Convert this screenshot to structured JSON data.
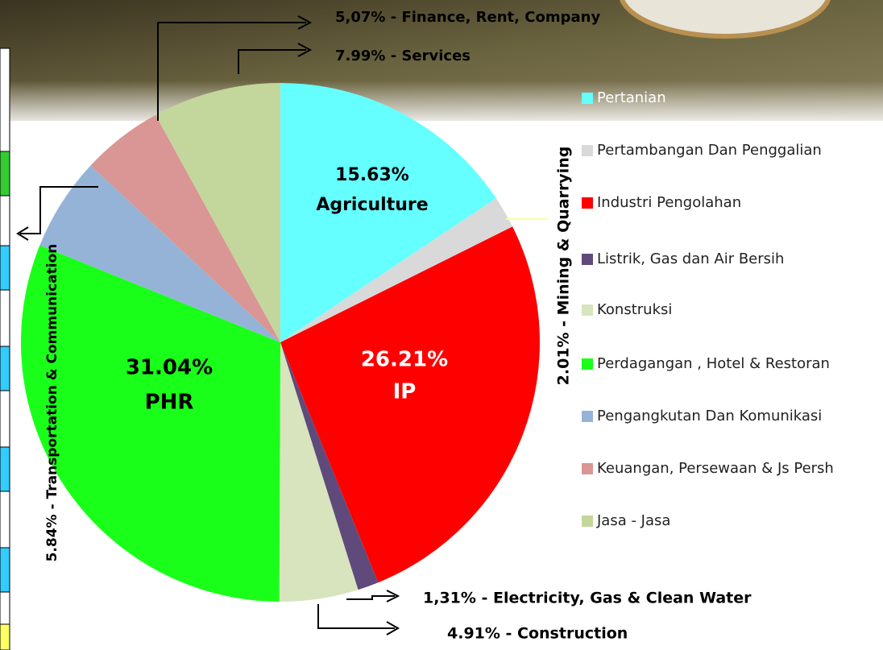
{
  "chart_data": {
    "type": "pie",
    "categories": [
      "Pertanian",
      "Pertambangan Dan Penggalian",
      "Industri Pengolahan",
      "Listrik, Gas dan Air Bersih",
      "Konstruksi",
      "Perdagangan , Hotel & Restoran",
      "Pengangkutan Dan Komunikasi",
      "Keuangan, Persewaan & Js Persh",
      "Jasa - Jasa"
    ],
    "values": [
      15.63,
      2.01,
      26.21,
      1.31,
      4.91,
      31.04,
      5.84,
      5.07,
      7.99
    ],
    "value_labels": [
      "15.63%",
      "2.01% - Mining & Quarrying",
      "26.21%",
      "1,31% - Electricity, Gas & Clean Water",
      "4.91% - Construction",
      "31.04%",
      "5.84% - Transportation & Communication",
      "5,07% - Finance, Rent, Company",
      "7.99% - Services"
    ],
    "slice_names": [
      "Agriculture",
      null,
      "IP",
      null,
      null,
      "PHR",
      null,
      null,
      null
    ],
    "colors": [
      "#66ffff",
      "#d9d9d9",
      "#ff0000",
      "#604a7b",
      "#d7e4bd",
      "#1aff1a",
      "#95b3d7",
      "#d99694",
      "#c3d69b"
    ],
    "legend": "right"
  }
}
